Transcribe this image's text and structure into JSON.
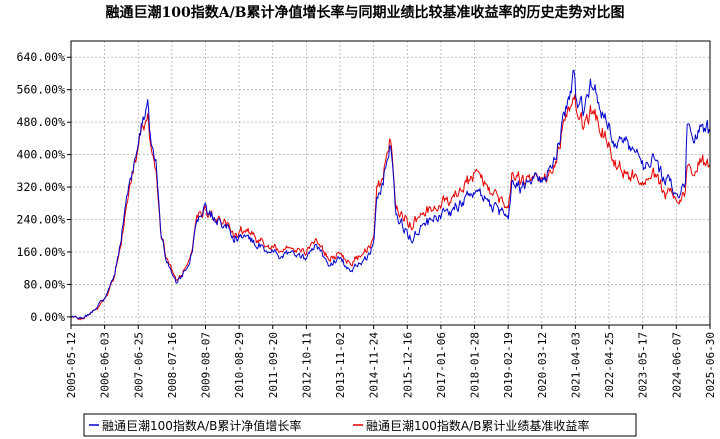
{
  "chart_data": {
    "type": "line",
    "title": "融通巨潮100指数A/B累计净值增长率与同期业绩比较基准收益率的历史走势对比图",
    "xlabel": "",
    "ylabel": "",
    "x_range": [
      "2005-05-12",
      "2025-06-30"
    ],
    "ylim": [
      -20,
      680
    ],
    "y_ticks": [
      0,
      80,
      160,
      240,
      320,
      400,
      480,
      560,
      640
    ],
    "y_tick_labels": [
      "0.00%",
      "80.00%",
      "160.00%",
      "240.00%",
      "320.00%",
      "400.00%",
      "480.00%",
      "560.00%",
      "640.00%"
    ],
    "x_tick_labels": [
      "2005-05-12",
      "2006-06-03",
      "2007-06-25",
      "2008-07-16",
      "2009-08-07",
      "2010-08-29",
      "2011-09-20",
      "2012-10-11",
      "2013-11-02",
      "2014-11-24",
      "2015-12-16",
      "2017-01-06",
      "2018-01-28",
      "2019-02-19",
      "2020-03-12",
      "2021-04-03",
      "2022-04-25",
      "2023-05-17",
      "2024-06-07",
      "2025-06-30"
    ],
    "grid": true,
    "legend_position": "bottom",
    "series": [
      {
        "name": "融通巨潮100指数A/B累计净值增长率",
        "color": "#0000cc",
        "x": [
          "2005-05-12",
          "2005-08-01",
          "2005-11-01",
          "2006-03-01",
          "2006-06-03",
          "2006-09-01",
          "2006-12-01",
          "2007-03-01",
          "2007-06-25",
          "2007-08-01",
          "2007-10-10",
          "2007-11-15",
          "2008-01-15",
          "2008-03-10",
          "2008-05-01",
          "2008-07-16",
          "2008-09-01",
          "2008-11-01",
          "2009-01-10",
          "2009-03-01",
          "2009-05-01",
          "2009-08-01",
          "2009-09-01",
          "2009-12-01",
          "2010-03-01",
          "2010-07-01",
          "2010-11-01",
          "2011-04-01",
          "2011-09-20",
          "2012-01-01",
          "2012-05-01",
          "2012-10-11",
          "2013-02-01",
          "2013-06-25",
          "2013-11-02",
          "2014-03-01",
          "2014-07-01",
          "2014-11-24",
          "2015-01-01",
          "2015-03-01",
          "2015-06-12",
          "2015-08-01",
          "2015-09-15",
          "2015-12-16",
          "2016-02-01",
          "2016-06-01",
          "2016-12-01",
          "2017-06-01",
          "2018-01-28",
          "2018-06-01",
          "2018-12-01",
          "2019-02-19",
          "2019-04-15",
          "2019-08-01",
          "2020-01-10",
          "2020-03-12",
          "2020-07-15",
          "2021-01-01",
          "2021-02-15",
          "2021-03-10",
          "2021-04-03",
          "2021-07-01",
          "2021-10-01",
          "2022-01-01",
          "2022-04-25",
          "2022-07-01",
          "2022-11-01",
          "2023-02-01",
          "2023-05-17",
          "2023-09-01",
          "2024-02-01",
          "2024-06-07",
          "2024-09-20",
          "2024-10-08",
          "2025-01-01",
          "2025-03-01",
          "2025-06-30"
        ],
        "y": [
          0,
          -5,
          2,
          25,
          45,
          90,
          180,
          310,
          440,
          470,
          500,
          430,
          390,
          210,
          150,
          110,
          90,
          95,
          120,
          170,
          230,
          280,
          260,
          240,
          230,
          195,
          205,
          175,
          160,
          148,
          165,
          148,
          175,
          130,
          140,
          118,
          132,
          175,
          300,
          330,
          430,
          260,
          230,
          210,
          195,
          225,
          250,
          260,
          320,
          280,
          260,
          245,
          330,
          320,
          355,
          330,
          375,
          520,
          590,
          650,
          560,
          520,
          580,
          510,
          470,
          420,
          440,
          420,
          370,
          380,
          340,
          300,
          330,
          480,
          450,
          460,
          455
        ]
      },
      {
        "name": "融通巨潮100指数A/B累计业绩基准收益率",
        "color": "#e60000",
        "x": [
          "2005-05-12",
          "2005-08-01",
          "2005-11-01",
          "2006-03-01",
          "2006-06-03",
          "2006-09-01",
          "2006-12-01",
          "2007-03-01",
          "2007-06-25",
          "2007-08-01",
          "2007-10-10",
          "2007-11-15",
          "2008-01-15",
          "2008-03-10",
          "2008-05-01",
          "2008-07-16",
          "2008-09-01",
          "2008-11-01",
          "2009-01-10",
          "2009-03-01",
          "2009-05-01",
          "2009-08-01",
          "2009-09-01",
          "2009-12-01",
          "2010-03-01",
          "2010-07-01",
          "2010-11-01",
          "2011-04-01",
          "2011-09-20",
          "2012-01-01",
          "2012-05-01",
          "2012-10-11",
          "2013-02-01",
          "2013-06-25",
          "2013-11-02",
          "2014-03-01",
          "2014-07-01",
          "2014-11-24",
          "2015-01-01",
          "2015-03-01",
          "2015-06-12",
          "2015-08-01",
          "2015-09-15",
          "2015-12-16",
          "2016-02-01",
          "2016-06-01",
          "2016-12-01",
          "2017-06-01",
          "2018-01-28",
          "2018-06-01",
          "2018-12-01",
          "2019-02-19",
          "2019-04-15",
          "2019-08-01",
          "2020-01-10",
          "2020-03-12",
          "2020-07-15",
          "2021-01-01",
          "2021-02-15",
          "2021-03-10",
          "2021-04-03",
          "2021-07-01",
          "2021-10-01",
          "2022-01-01",
          "2022-04-25",
          "2022-07-01",
          "2022-11-01",
          "2023-02-01",
          "2023-05-17",
          "2023-09-01",
          "2024-02-01",
          "2024-06-07",
          "2024-09-20",
          "2024-10-08",
          "2025-01-01",
          "2025-03-01",
          "2025-06-30"
        ],
        "y": [
          0,
          -5,
          2,
          22,
          42,
          85,
          170,
          300,
          420,
          460,
          480,
          420,
          385,
          215,
          160,
          115,
          95,
          100,
          130,
          175,
          235,
          275,
          255,
          240,
          235,
          205,
          215,
          190,
          175,
          160,
          178,
          162,
          188,
          145,
          155,
          135,
          150,
          190,
          320,
          345,
          440,
          280,
          255,
          240,
          230,
          255,
          275,
          290,
          360,
          320,
          290,
          275,
          345,
          335,
          360,
          335,
          360,
          500,
          560,
          570,
          530,
          480,
          520,
          460,
          420,
          380,
          360,
          350,
          330,
          340,
          310,
          290,
          300,
          370,
          370,
          380,
          375
        ]
      }
    ]
  }
}
